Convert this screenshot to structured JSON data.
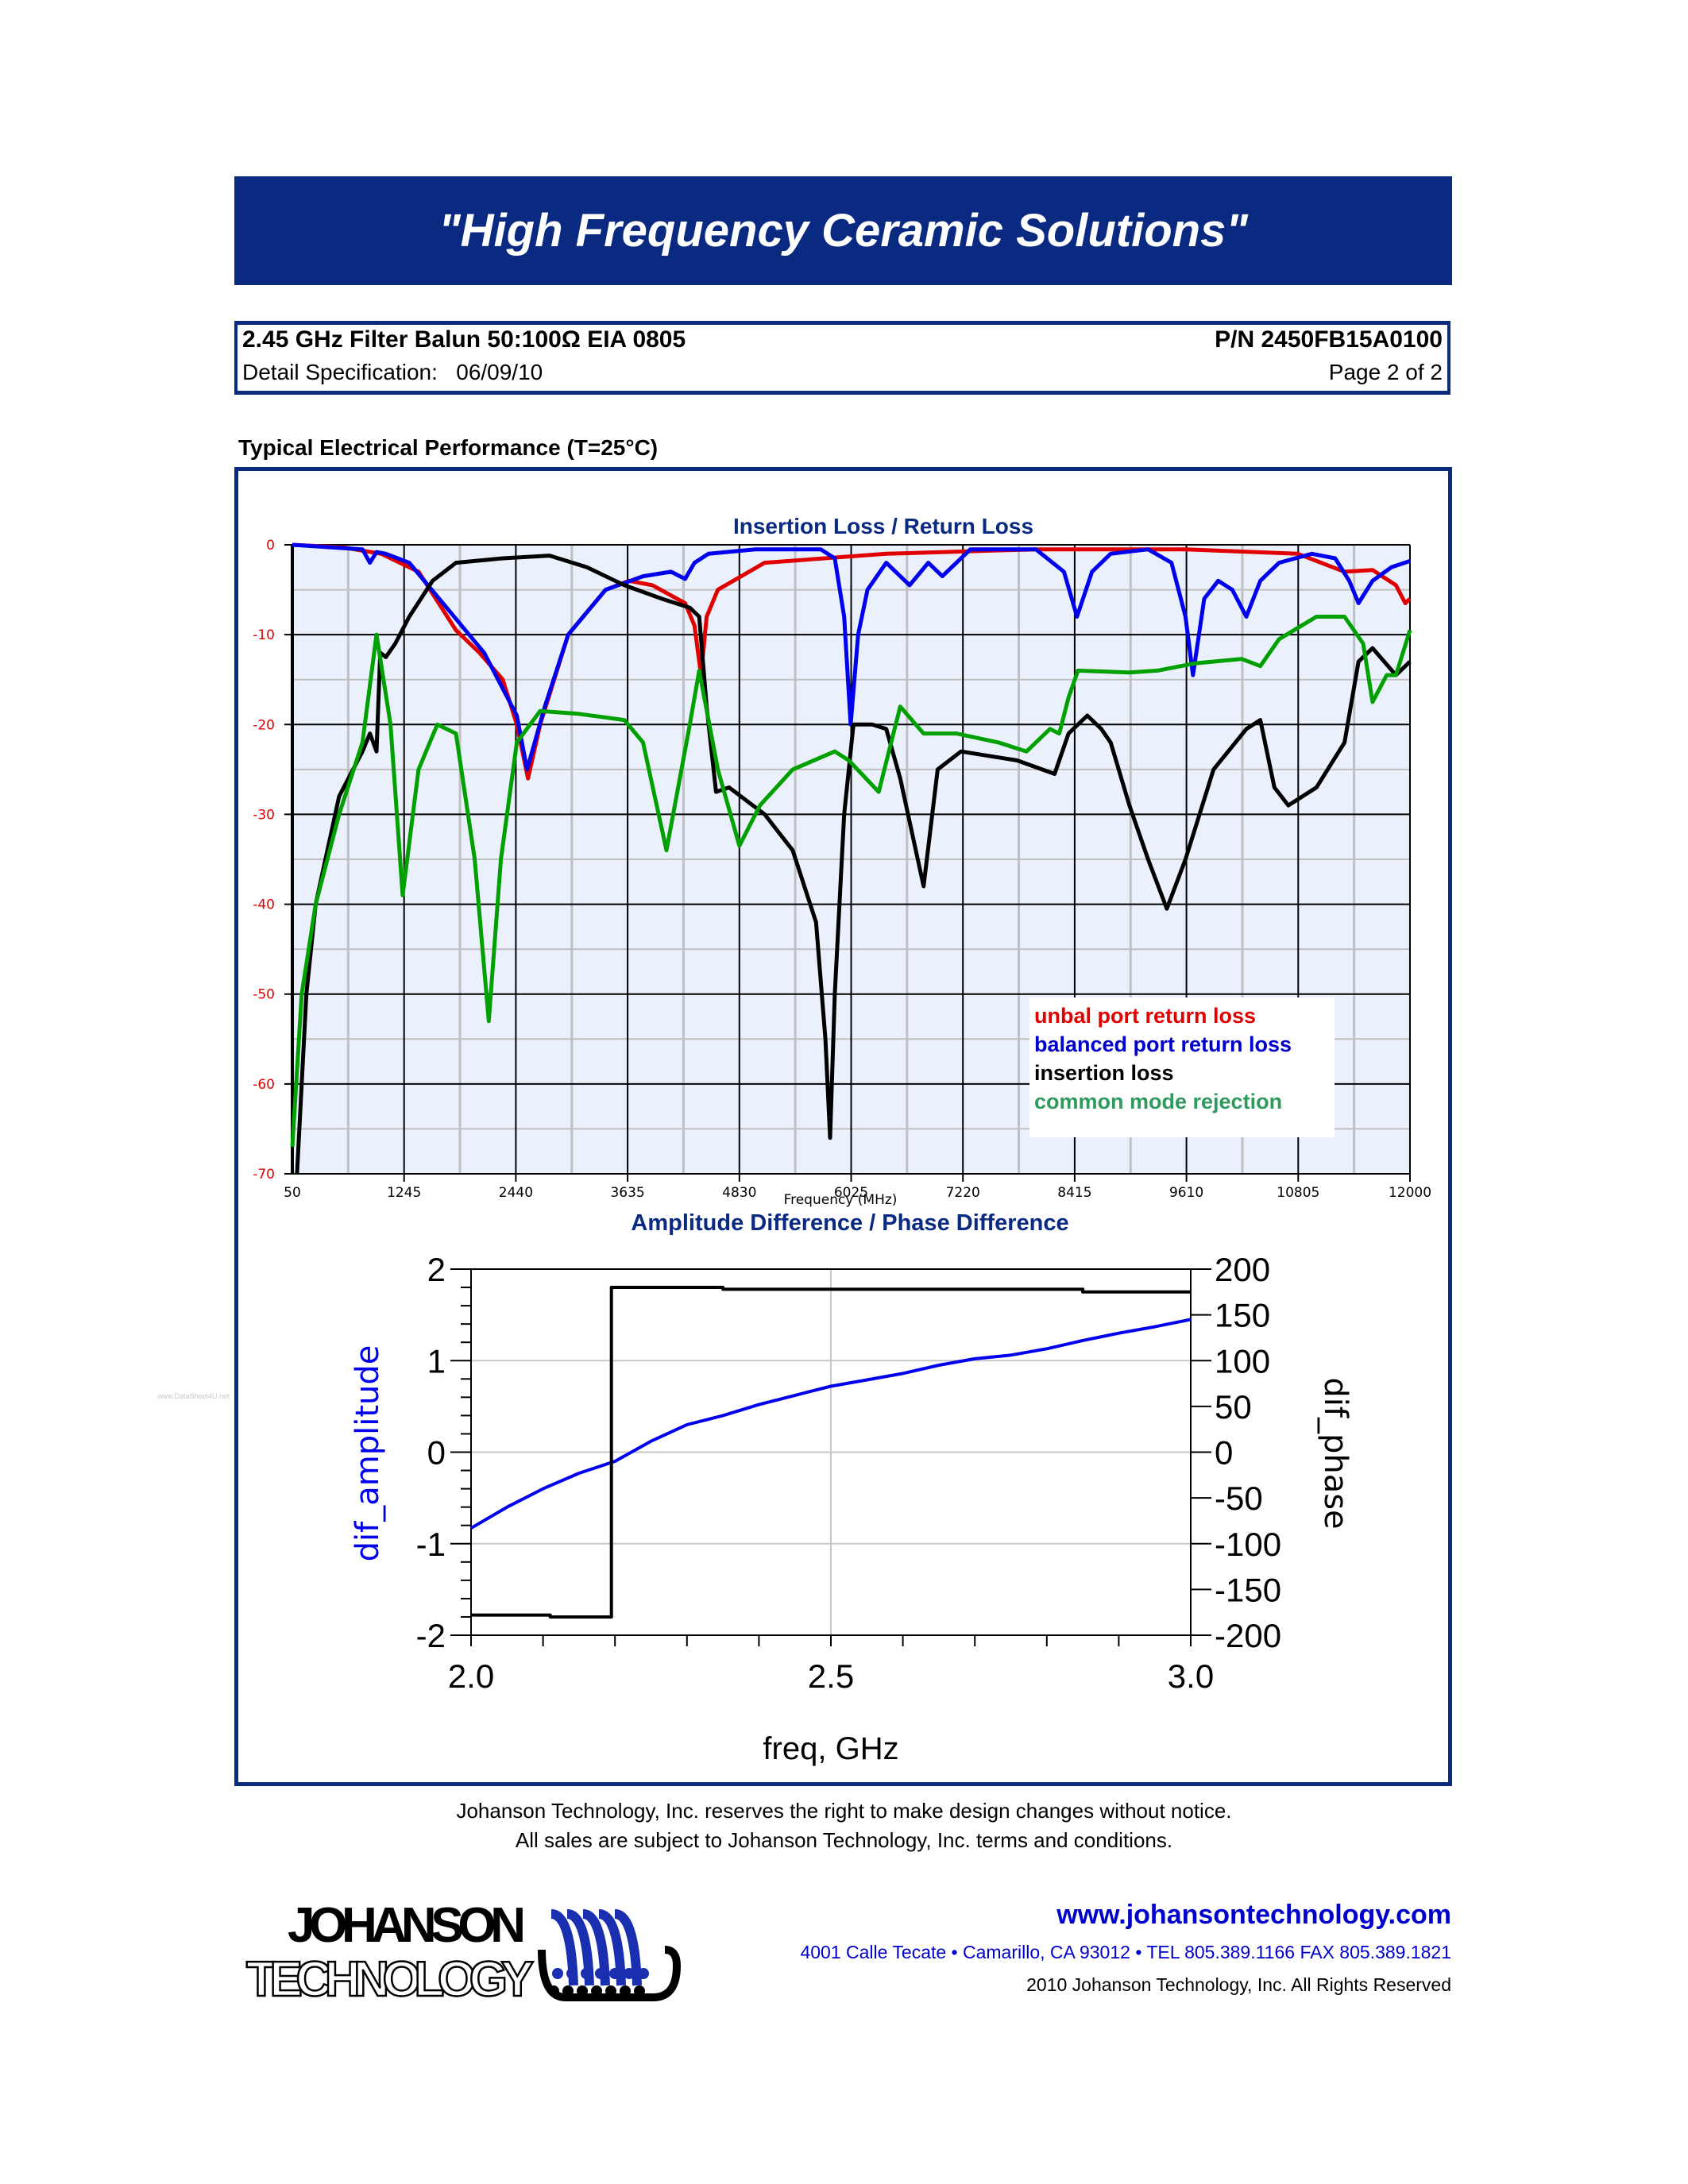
{
  "banner": {
    "title": "\"High Frequency Ceramic Solutions\""
  },
  "header": {
    "product": "2.45 GHz Filter Balun 50:100Ω EIA 0805",
    "part_number": "P/N 2450FB15A0100",
    "spec_label": "Detail Specification:   06/09/10",
    "page": "Page 2 of 2"
  },
  "section_title": "Typical Electrical Performance (T=25°C)",
  "watermark": "www.DataSheet4U.net",
  "disclaimer": {
    "line1": "Johanson Technology, Inc. reserves the right to make design changes without notice.",
    "line2": "All sales are subject to Johanson Technology, Inc. terms and conditions."
  },
  "footer": {
    "logo_line1": "JOHANSON",
    "logo_line2": "TECHNOLOGY",
    "url": "www.johansontechnology.com",
    "address": "4001 Calle Tecate • Camarillo, CA 93012 • TEL 805.389.1166 FAX 805.389.1821",
    "copyright": "2010 Johanson Technology, Inc.  All Rights Reserved"
  },
  "colors": {
    "brand_blue": "#0a2a82",
    "red": "#e00000",
    "blue": "#0000ee",
    "black": "#000000",
    "green": "#00a000",
    "plot_bg": "#eaf1fd"
  },
  "chart_data": [
    {
      "type": "line",
      "title": "Insertion Loss / Return Loss",
      "xlabel": "Frequency (MHz)",
      "ylabel": "",
      "xlim": [
        50,
        12000
      ],
      "ylim": [
        -70,
        0
      ],
      "x_ticks": [
        50,
        1245,
        2440,
        3635,
        4830,
        6025,
        7220,
        8415,
        9610,
        10805,
        12000
      ],
      "y_ticks": [
        0,
        -10,
        -20,
        -30,
        -40,
        -50,
        -60,
        -70
      ],
      "grid": true,
      "legend_position": "lower-right",
      "series": [
        {
          "name": "unbal port return loss",
          "color": "#e00000",
          "points": [
            [
              50,
              0
            ],
            [
              600,
              -0.3
            ],
            [
              1000,
              -1
            ],
            [
              1400,
              -3
            ],
            [
              1800,
              -9.5
            ],
            [
              2050,
              -12
            ],
            [
              2300,
              -15
            ],
            [
              2450,
              -20
            ],
            [
              2570,
              -26
            ],
            [
              2700,
              -20
            ],
            [
              3000,
              -10
            ],
            [
              3400,
              -5
            ],
            [
              3650,
              -4
            ],
            [
              3900,
              -4.5
            ],
            [
              4250,
              -6.5
            ],
            [
              4350,
              -9
            ],
            [
              4420,
              -14.5
            ],
            [
              4480,
              -8
            ],
            [
              4600,
              -5
            ],
            [
              5100,
              -2
            ],
            [
              6400,
              -1
            ],
            [
              8000,
              -0.5
            ],
            [
              9600,
              -0.5
            ],
            [
              10800,
              -1
            ],
            [
              11300,
              -3
            ],
            [
              11600,
              -2.8
            ],
            [
              11850,
              -4.5
            ],
            [
              11950,
              -6.5
            ],
            [
              12000,
              -6
            ]
          ]
        },
        {
          "name": "balanced port return loss",
          "color": "#0000ee",
          "points": [
            [
              50,
              0
            ],
            [
              800,
              -0.5
            ],
            [
              880,
              -2
            ],
            [
              950,
              -0.8
            ],
            [
              1050,
              -1
            ],
            [
              1300,
              -2
            ],
            [
              1700,
              -7
            ],
            [
              2100,
              -12
            ],
            [
              2450,
              -19
            ],
            [
              2560,
              -25
            ],
            [
              2750,
              -18
            ],
            [
              3000,
              -10
            ],
            [
              3400,
              -5
            ],
            [
              3800,
              -3.5
            ],
            [
              4100,
              -3
            ],
            [
              4250,
              -3.8
            ],
            [
              4350,
              -2
            ],
            [
              4500,
              -1
            ],
            [
              5000,
              -0.5
            ],
            [
              5700,
              -0.5
            ],
            [
              5850,
              -1.5
            ],
            [
              5950,
              -8
            ],
            [
              6020,
              -20
            ],
            [
              6100,
              -10
            ],
            [
              6200,
              -5
            ],
            [
              6400,
              -2
            ],
            [
              6650,
              -4.5
            ],
            [
              6850,
              -2
            ],
            [
              7000,
              -3.5
            ],
            [
              7300,
              -0.5
            ],
            [
              8000,
              -0.5
            ],
            [
              8300,
              -3
            ],
            [
              8440,
              -8
            ],
            [
              8600,
              -3
            ],
            [
              8800,
              -1
            ],
            [
              9200,
              -0.5
            ],
            [
              9450,
              -2
            ],
            [
              9600,
              -8
            ],
            [
              9680,
              -14.5
            ],
            [
              9800,
              -6
            ],
            [
              9950,
              -4
            ],
            [
              10100,
              -5
            ],
            [
              10250,
              -8
            ],
            [
              10400,
              -4
            ],
            [
              10600,
              -2
            ],
            [
              10950,
              -1
            ],
            [
              11200,
              -1.5
            ],
            [
              11350,
              -4
            ],
            [
              11450,
              -6.5
            ],
            [
              11600,
              -4
            ],
            [
              11800,
              -2.5
            ],
            [
              12000,
              -1.8
            ]
          ]
        },
        {
          "name": "insertion loss",
          "color": "#000000",
          "points": [
            [
              100,
              -70
            ],
            [
              200,
              -50
            ],
            [
              300,
              -40
            ],
            [
              550,
              -28
            ],
            [
              800,
              -23
            ],
            [
              880,
              -21
            ],
            [
              950,
              -23
            ],
            [
              990,
              -12
            ],
            [
              1050,
              -12.5
            ],
            [
              1150,
              -11
            ],
            [
              1300,
              -8
            ],
            [
              1550,
              -4
            ],
            [
              1800,
              -2
            ],
            [
              2300,
              -1.5
            ],
            [
              2800,
              -1.2
            ],
            [
              3200,
              -2.5
            ],
            [
              3600,
              -4.5
            ],
            [
              4000,
              -6
            ],
            [
              4300,
              -7
            ],
            [
              4400,
              -8
            ],
            [
              4480,
              -18
            ],
            [
              4580,
              -27.5
            ],
            [
              4720,
              -27
            ],
            [
              5100,
              -30
            ],
            [
              5400,
              -34
            ],
            [
              5650,
              -42
            ],
            [
              5750,
              -55
            ],
            [
              5800,
              -66
            ],
            [
              5850,
              -50
            ],
            [
              5950,
              -30
            ],
            [
              6050,
              -20
            ],
            [
              6250,
              -20
            ],
            [
              6400,
              -20.5
            ],
            [
              6550,
              -26
            ],
            [
              6800,
              -38
            ],
            [
              6950,
              -25
            ],
            [
              7200,
              -23
            ],
            [
              7800,
              -24
            ],
            [
              8200,
              -25.5
            ],
            [
              8350,
              -21
            ],
            [
              8550,
              -19
            ],
            [
              8700,
              -20.5
            ],
            [
              8800,
              -22
            ],
            [
              9000,
              -29
            ],
            [
              9200,
              -35
            ],
            [
              9400,
              -40.5
            ],
            [
              9600,
              -35
            ],
            [
              9900,
              -25
            ],
            [
              10250,
              -20.5
            ],
            [
              10400,
              -19.5
            ],
            [
              10550,
              -27
            ],
            [
              10700,
              -29
            ],
            [
              11000,
              -27
            ],
            [
              11300,
              -22
            ],
            [
              11450,
              -13
            ],
            [
              11600,
              -11.5
            ],
            [
              11850,
              -14.5
            ],
            [
              12000,
              -13
            ]
          ]
        },
        {
          "name": "common mode rejection",
          "color": "#00a000",
          "points": [
            [
              50,
              -67
            ],
            [
              150,
              -50
            ],
            [
              300,
              -40
            ],
            [
              550,
              -30
            ],
            [
              800,
              -22
            ],
            [
              950,
              -10
            ],
            [
              1100,
              -20
            ],
            [
              1230,
              -39
            ],
            [
              1400,
              -25
            ],
            [
              1600,
              -20
            ],
            [
              1800,
              -21
            ],
            [
              2000,
              -35
            ],
            [
              2150,
              -53
            ],
            [
              2280,
              -35
            ],
            [
              2450,
              -22
            ],
            [
              2700,
              -18.5
            ],
            [
              3100,
              -18.8
            ],
            [
              3600,
              -19.5
            ],
            [
              3800,
              -22
            ],
            [
              4050,
              -34
            ],
            [
              4300,
              -20
            ],
            [
              4400,
              -14
            ],
            [
              4600,
              -25
            ],
            [
              4830,
              -33.5
            ],
            [
              5050,
              -29
            ],
            [
              5400,
              -25
            ],
            [
              5850,
              -23
            ],
            [
              6000,
              -24
            ],
            [
              6320,
              -27.5
            ],
            [
              6550,
              -18
            ],
            [
              6800,
              -21
            ],
            [
              7150,
              -21
            ],
            [
              7600,
              -22
            ],
            [
              7900,
              -23
            ],
            [
              8150,
              -20.5
            ],
            [
              8250,
              -21
            ],
            [
              8350,
              -17
            ],
            [
              8450,
              -14
            ],
            [
              9000,
              -14.2
            ],
            [
              9300,
              -14
            ],
            [
              9700,
              -13.2
            ],
            [
              10200,
              -12.7
            ],
            [
              10400,
              -13.5
            ],
            [
              10600,
              -10.5
            ],
            [
              11000,
              -8
            ],
            [
              11300,
              -8
            ],
            [
              11500,
              -11
            ],
            [
              11600,
              -17.5
            ],
            [
              11750,
              -14.5
            ],
            [
              11850,
              -14.5
            ],
            [
              12000,
              -9.5
            ]
          ]
        }
      ]
    },
    {
      "type": "line",
      "title": "Amplitude Difference / Phase Difference",
      "xlabel": "freq, GHz",
      "ylabel": "dif_amplitude",
      "ylabel_right": "dif_phase",
      "xlim": [
        2.0,
        3.0
      ],
      "ylim": [
        -2,
        2
      ],
      "ylim_right": [
        -200,
        200
      ],
      "x_ticks": [
        2.0,
        2.5,
        3.0
      ],
      "y_ticks": [
        -2,
        -1,
        0,
        1,
        2
      ],
      "y_ticks_right": [
        -200,
        -150,
        -100,
        -50,
        0,
        50,
        100,
        150,
        200
      ],
      "grid": true,
      "series": [
        {
          "name": "dif_amplitude",
          "axis": "left",
          "color": "#0000ee",
          "x": [
            2.0,
            2.05,
            2.1,
            2.15,
            2.2,
            2.25,
            2.3,
            2.35,
            2.4,
            2.45,
            2.5,
            2.55,
            2.6,
            2.65,
            2.7,
            2.75,
            2.8,
            2.85,
            2.9,
            2.95,
            3.0
          ],
          "values": [
            -0.83,
            -0.6,
            -0.4,
            -0.23,
            -0.1,
            0.12,
            0.3,
            0.4,
            0.52,
            0.62,
            0.72,
            0.79,
            0.86,
            0.95,
            1.02,
            1.06,
            1.13,
            1.22,
            1.3,
            1.37,
            1.45
          ]
        },
        {
          "name": "dif_phase",
          "axis": "right",
          "color": "#000000",
          "x": [
            2.0,
            2.11,
            2.11,
            2.195,
            2.195,
            2.35,
            2.35,
            2.85,
            2.85,
            3.0
          ],
          "values": [
            -178,
            -178,
            -180,
            -180,
            180,
            180,
            178,
            178,
            175,
            175
          ]
        }
      ]
    }
  ]
}
